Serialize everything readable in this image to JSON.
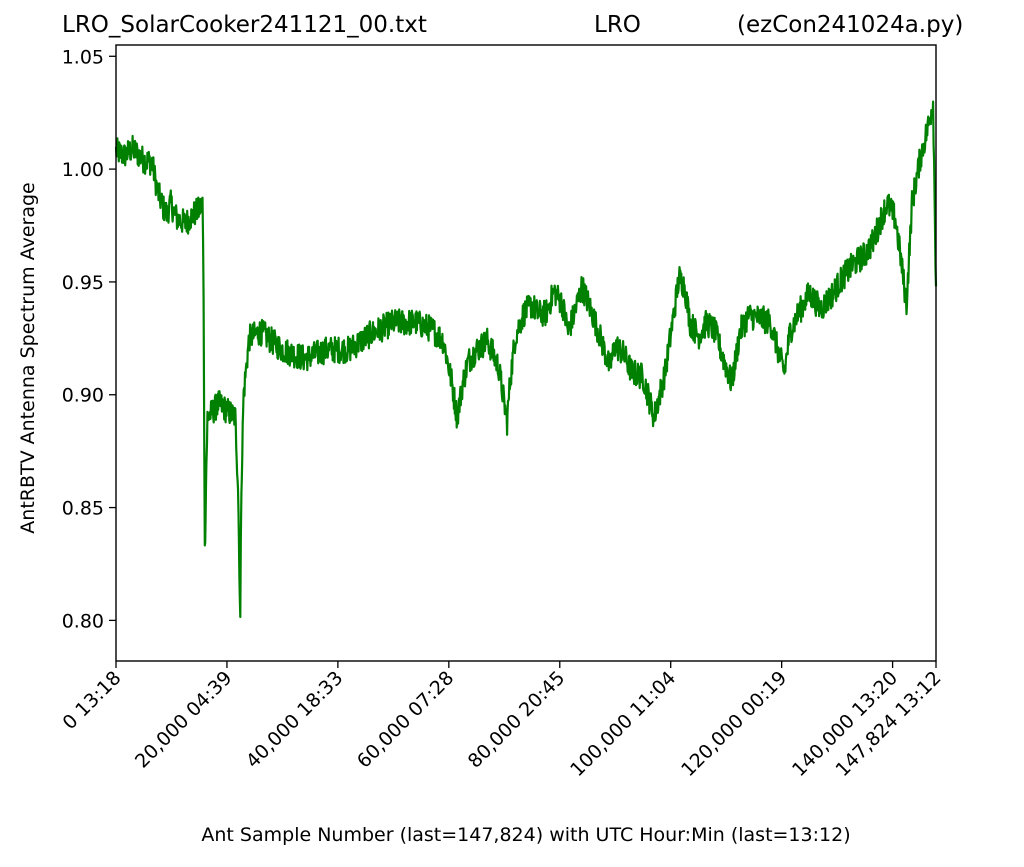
{
  "chart_data": {
    "type": "line",
    "title_left": "LRO_SolarCooker241121_00.txt",
    "title_center": "LRO",
    "title_right": "(ezCon241024a.py)",
    "xlabel": "Ant Sample Number (last=147,824) with UTC Hour:Min (last=13:12)",
    "ylabel": "AntRBTV Antenna Spectrum Average",
    "xlim": [
      0,
      147824
    ],
    "ylim": [
      0.782,
      1.055
    ],
    "yticks": [
      {
        "value": 0.8,
        "label": "0.80"
      },
      {
        "value": 0.85,
        "label": "0.85"
      },
      {
        "value": 0.9,
        "label": "0.90"
      },
      {
        "value": 0.95,
        "label": "0.95"
      },
      {
        "value": 1.0,
        "label": "1.00"
      },
      {
        "value": 1.05,
        "label": "1.05"
      }
    ],
    "xticks": [
      {
        "value": 0,
        "label": "0  13:18"
      },
      {
        "value": 20000,
        "label": "20,000  04:39"
      },
      {
        "value": 40000,
        "label": "40,000  18:33"
      },
      {
        "value": 60000,
        "label": "60,000  07:28"
      },
      {
        "value": 80000,
        "label": "80,000  20:45"
      },
      {
        "value": 100000,
        "label": "100,000  11:04"
      },
      {
        "value": 120000,
        "label": "120,000  00:19"
      },
      {
        "value": 140000,
        "label": "140,000  13:20"
      },
      {
        "value": 147824,
        "label": "147,824  13:12"
      }
    ],
    "series": [
      {
        "color": "#008000",
        "x": [
          0,
          1500,
          3000,
          5000,
          6500,
          7500,
          8500,
          9200,
          9800,
          11000,
          12500,
          14000,
          15000,
          15600,
          15800,
          16000,
          16300,
          16500,
          17200,
          18500,
          20000,
          21500,
          22000,
          22400,
          22600,
          23000,
          24000,
          26000,
          30000,
          34000,
          38000,
          42000,
          46000,
          50000,
          54000,
          57000,
          59000,
          60500,
          61500,
          62500,
          63500,
          65000,
          67000,
          69000,
          70500,
          71000,
          72000,
          73500,
          75000,
          76000,
          77500,
          79000,
          80500,
          81500,
          82500,
          84000,
          86000,
          87500,
          89000,
          90000,
          91500,
          93000,
          95000,
          97000,
          99000,
          100500,
          101500,
          102500,
          103500,
          105000,
          106500,
          108000,
          109500,
          111000,
          112500,
          114000,
          116000,
          118000,
          119500,
          120500,
          121500,
          123000,
          125000,
          127000,
          129000,
          131000,
          133000,
          135000,
          136500,
          137500,
          139000,
          140500,
          141500,
          142500,
          143500,
          145000,
          146500,
          147300,
          147824
        ],
        "y": [
          1.008,
          1.006,
          1.009,
          1.004,
          1.003,
          0.99,
          0.983,
          0.98,
          0.985,
          0.978,
          0.976,
          0.98,
          0.982,
          0.985,
          0.945,
          0.83,
          0.87,
          0.89,
          0.892,
          0.896,
          0.893,
          0.89,
          0.86,
          0.8,
          0.86,
          0.9,
          0.925,
          0.928,
          0.92,
          0.916,
          0.92,
          0.92,
          0.927,
          0.932,
          0.932,
          0.929,
          0.924,
          0.906,
          0.89,
          0.905,
          0.915,
          0.92,
          0.924,
          0.912,
          0.888,
          0.905,
          0.926,
          0.936,
          0.94,
          0.936,
          0.936,
          0.946,
          0.94,
          0.928,
          0.935,
          0.948,
          0.935,
          0.924,
          0.912,
          0.922,
          0.918,
          0.91,
          0.908,
          0.89,
          0.91,
          0.935,
          0.952,
          0.948,
          0.932,
          0.926,
          0.932,
          0.928,
          0.916,
          0.905,
          0.928,
          0.935,
          0.934,
          0.932,
          0.918,
          0.91,
          0.928,
          0.936,
          0.945,
          0.938,
          0.944,
          0.952,
          0.958,
          0.962,
          0.968,
          0.975,
          0.985,
          0.978,
          0.96,
          0.94,
          0.985,
          1.005,
          1.02,
          1.03,
          0.948
        ],
        "noise": 0.006
      }
    ]
  }
}
